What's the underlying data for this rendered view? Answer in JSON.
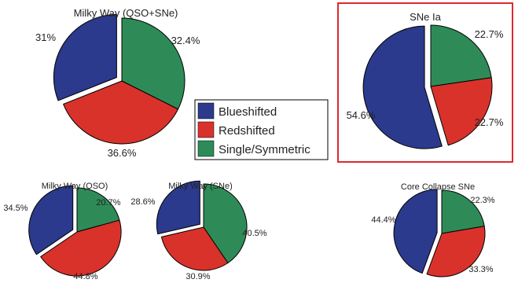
{
  "colors": {
    "blueshifted": "#2b3a8c",
    "redshifted": "#d9322b",
    "single": "#2e8b57",
    "highlight": "#e0282e"
  },
  "legend": [
    {
      "label": "Blueshifted",
      "color_key": "blueshifted"
    },
    {
      "label": "Redshifted",
      "color_key": "redshifted"
    },
    {
      "label": "Single/Symmetric",
      "color_key": "single"
    }
  ],
  "chart_data": [
    {
      "type": "pie",
      "title": "Milky Way (QSO+SNe)",
      "slices": [
        {
          "label": "Blueshifted",
          "value": 31.0,
          "text": "31%",
          "exploded": true
        },
        {
          "label": "Redshifted",
          "value": 36.6,
          "text": "36.6%",
          "exploded": false
        },
        {
          "label": "Single/Symmetric",
          "value": 32.4,
          "text": "32.4%",
          "exploded": false
        }
      ]
    },
    {
      "type": "pie",
      "title": "SNe Ia",
      "highlighted": true,
      "slices": [
        {
          "label": "Blueshifted",
          "value": 54.6,
          "text": "54.6%",
          "exploded": true
        },
        {
          "label": "Redshifted",
          "value": 22.7,
          "text": "22.7%",
          "exploded": false
        },
        {
          "label": "Single/Symmetric",
          "value": 22.7,
          "text": "22.7%",
          "exploded": false
        }
      ]
    },
    {
      "type": "pie",
      "title": "Milky Way (QSO)",
      "slices": [
        {
          "label": "Blueshifted",
          "value": 34.5,
          "text": "34.5%",
          "exploded": true
        },
        {
          "label": "Redshifted",
          "value": 44.8,
          "text": "44.8%",
          "exploded": false
        },
        {
          "label": "Single/Symmetric",
          "value": 20.7,
          "text": "20.7%",
          "exploded": false
        }
      ]
    },
    {
      "type": "pie",
      "title": "Milky Way (SNe)",
      "slices": [
        {
          "label": "Blueshifted",
          "value": 28.6,
          "text": "28.6%",
          "exploded": true
        },
        {
          "label": "Redshifted",
          "value": 30.9,
          "text": "30.9%",
          "exploded": false
        },
        {
          "label": "Single/Symmetric",
          "value": 40.5,
          "text": "40.5%",
          "exploded": false
        }
      ]
    },
    {
      "type": "pie",
      "title": "Core Collapse SNe",
      "slices": [
        {
          "label": "Blueshifted",
          "value": 44.4,
          "text": "44.4%",
          "exploded": true
        },
        {
          "label": "Redshifted",
          "value": 33.3,
          "text": "33.3%",
          "exploded": false
        },
        {
          "label": "Single/Symmetric",
          "value": 22.3,
          "text": "22.3%",
          "exploded": false
        }
      ]
    }
  ]
}
